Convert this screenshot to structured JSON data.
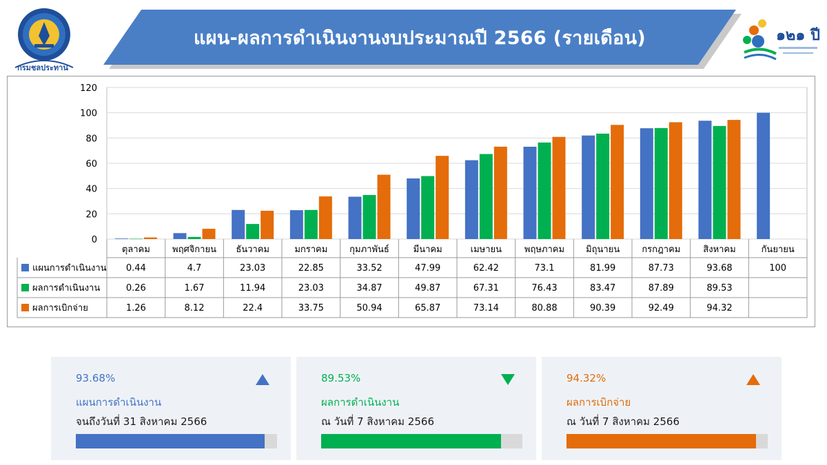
{
  "header": {
    "title": "แผน-ผลการดำเนินงานงบประมาณปี 2566 (รายเดือน)",
    "left_logo_text": "กรมชลประทาน",
    "right_logo_text": "๑๒๑ ปี"
  },
  "chart_data": {
    "type": "bar",
    "title": "",
    "xlabel": "",
    "ylabel": "",
    "ylim": [
      0,
      120
    ],
    "yticks": [
      0,
      20,
      40,
      60,
      80,
      100,
      120
    ],
    "grid": true,
    "legend": "table-below",
    "categories": [
      "ตุลาคม",
      "พฤศจิกายน",
      "ธันวาคม",
      "มกราคม",
      "กุมภาพันธ์",
      "มีนาคม",
      "เมษายน",
      "พฤษภาคม",
      "มิถุนายน",
      "กรกฎาคม",
      "สิงหาคม",
      "กันยายน"
    ],
    "series": [
      {
        "name": "แผนการดำเนินงาน",
        "color": "#4472c4",
        "values": [
          0.44,
          4.7,
          23.03,
          22.85,
          33.52,
          47.99,
          62.42,
          73.1,
          81.99,
          87.73,
          93.68,
          100
        ]
      },
      {
        "name": "ผลการดำเนินงาน",
        "color": "#00b050",
        "values": [
          0.26,
          1.67,
          11.94,
          23.03,
          34.87,
          49.87,
          67.31,
          76.43,
          83.47,
          87.89,
          89.53,
          null
        ]
      },
      {
        "name": "ผลการเบิกจ่าย",
        "color": "#e46c0a",
        "values": [
          1.26,
          8.12,
          22.4,
          33.75,
          50.94,
          65.87,
          73.14,
          80.88,
          90.39,
          92.49,
          94.32,
          null
        ]
      }
    ]
  },
  "cards": [
    {
      "pct": "93.68%",
      "label": "แผนการดำเนินงาน",
      "date": "จนถึงวันที่ 31 สิงหาคม 2566",
      "value": 93.68,
      "color": "#4472c4",
      "arrow": "up"
    },
    {
      "pct": "89.53%",
      "label": "ผลการดำเนินงาน",
      "date": "ณ วันที่ 7 สิงหาคม 2566",
      "value": 89.53,
      "color": "#00b050",
      "arrow": "down"
    },
    {
      "pct": "94.32%",
      "label": "ผลการเบิกจ่าย",
      "date": "ณ วันที่ 7 สิงหาคม 2566",
      "value": 94.32,
      "color": "#e46c0a",
      "arrow": "up"
    }
  ]
}
